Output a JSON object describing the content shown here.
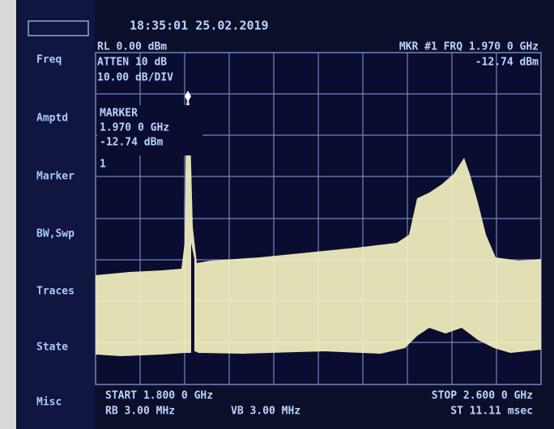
{
  "datetime": "18:35:01  25.02.2019",
  "softkeys": [
    "Freq",
    "Amptd",
    "Marker",
    "BW,Swp",
    "Traces",
    "State",
    "Misc"
  ],
  "header": {
    "reference_level": "RL 0.00 dBm",
    "attenuation": "ATTEN 10 dB",
    "scale": "10.00 dB/DIV",
    "marker_frequency": "MKR #1 FRQ 1.970 0 GHz",
    "marker_level": "-12.74 dBm"
  },
  "marker_box": {
    "title": "MARKER",
    "frequency": "1.970 0 GHz",
    "level": "-12.74 dBm",
    "number": "1"
  },
  "footer": {
    "start": "START  1.800 0 GHz",
    "resolution_bandwidth": "RB 3.00 MHz",
    "video_bandwidth": "VB 3.00 MHz",
    "stop": "STOP 2.600 0 GHz",
    "sweep_time": "ST 11.11 msec"
  }
}
